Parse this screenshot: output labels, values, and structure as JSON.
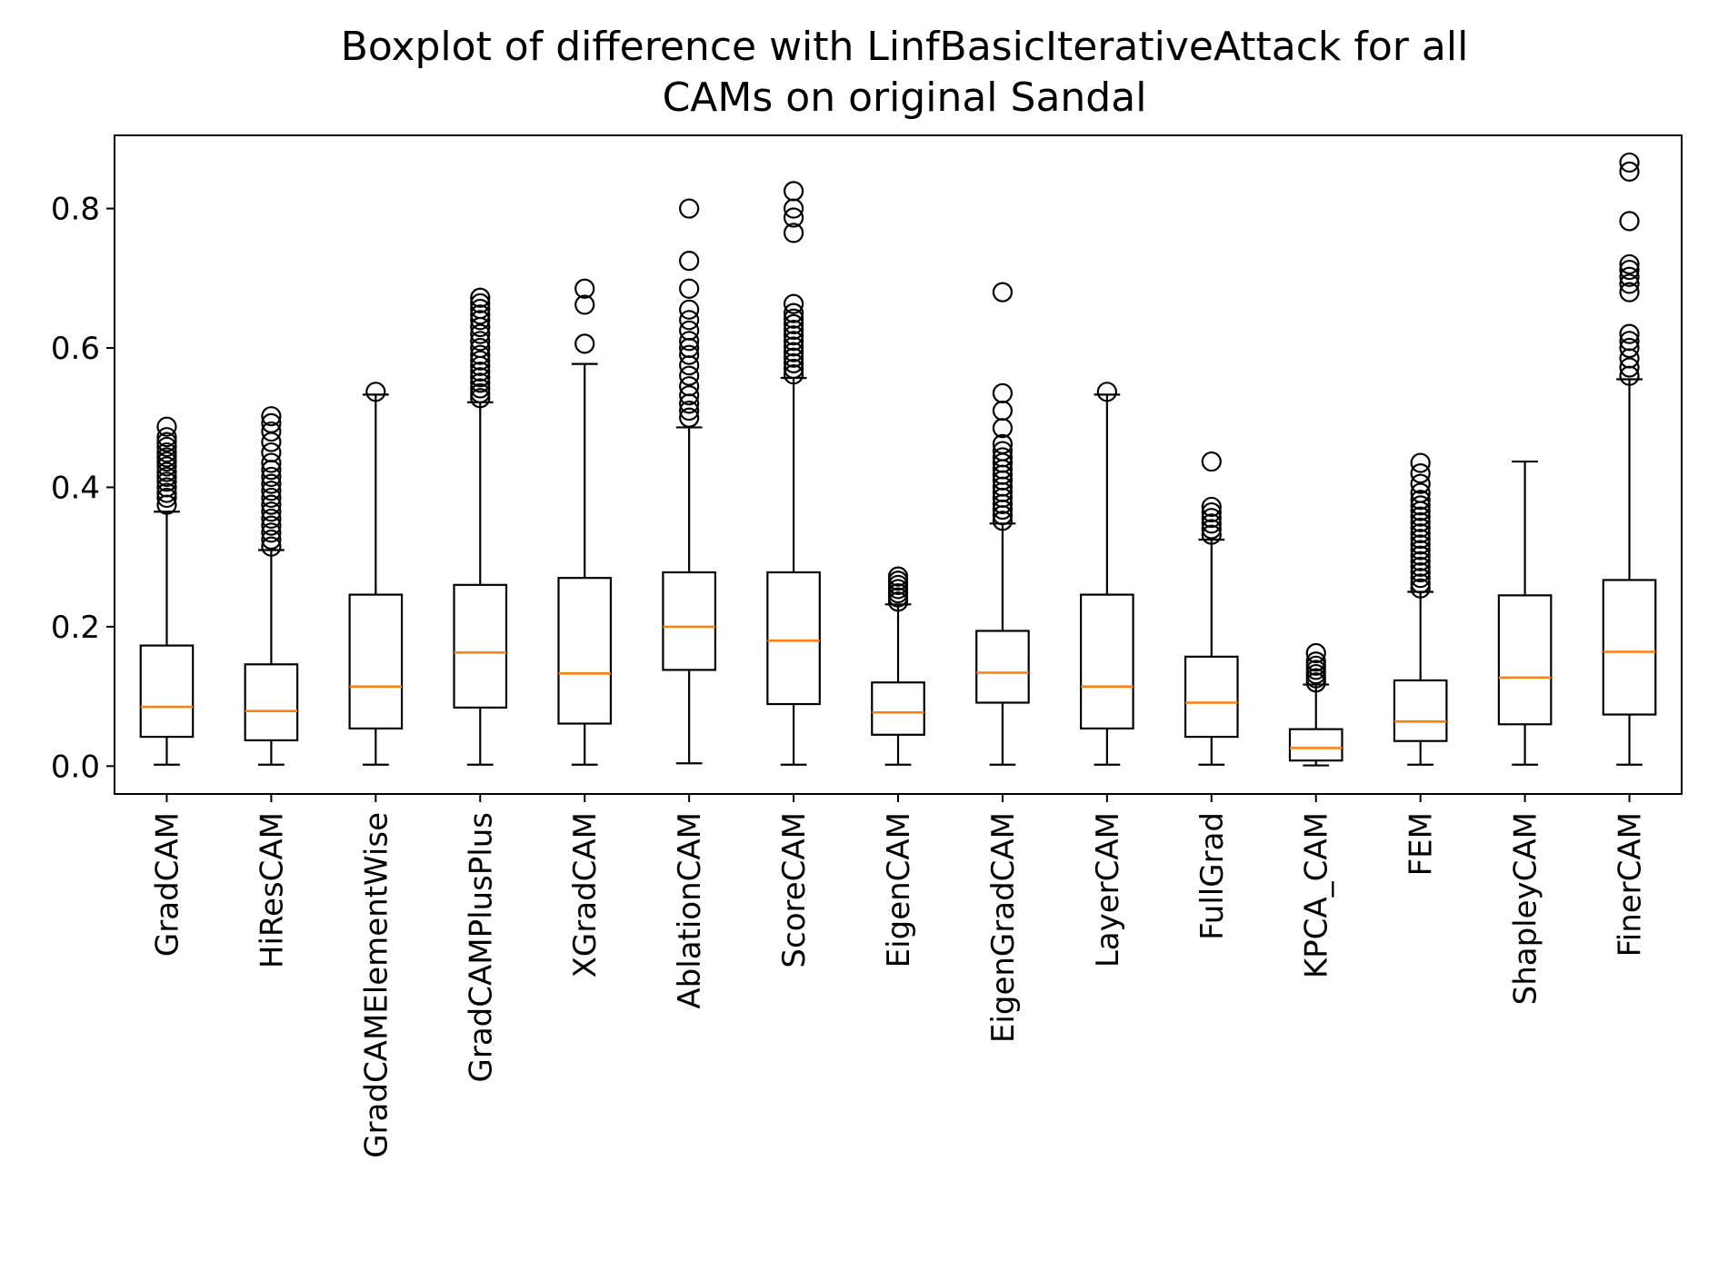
{
  "chart_data": {
    "type": "boxplot",
    "title_lines": [
      "Boxplot of difference with LinfBasicIterativeAttack for all",
      "CAMs on original Sandal"
    ],
    "xlabel": "",
    "ylabel": "",
    "ylim": [
      -0.04,
      0.905
    ],
    "yticks": [
      0.0,
      0.2,
      0.4,
      0.6,
      0.8
    ],
    "ytick_labels": [
      "0.0",
      "0.2",
      "0.4",
      "0.6",
      "0.8"
    ],
    "grid": false,
    "colors": {
      "box": "#000000",
      "median": "#ff7f0e",
      "outlier": "#000000"
    },
    "series": [
      {
        "name": "GradCAM",
        "whislo": 0.002,
        "q1": 0.042,
        "med": 0.085,
        "q3": 0.173,
        "whishi": 0.365,
        "fliers": [
          0.375,
          0.385,
          0.392,
          0.4,
          0.408,
          0.415,
          0.422,
          0.43,
          0.437,
          0.443,
          0.45,
          0.458,
          0.465,
          0.472,
          0.487
        ]
      },
      {
        "name": "HiResCAM",
        "whislo": 0.002,
        "q1": 0.037,
        "med": 0.079,
        "q3": 0.146,
        "whishi": 0.31,
        "fliers": [
          0.315,
          0.325,
          0.335,
          0.345,
          0.355,
          0.365,
          0.375,
          0.385,
          0.395,
          0.405,
          0.415,
          0.425,
          0.435,
          0.45,
          0.465,
          0.48,
          0.492,
          0.502
        ]
      },
      {
        "name": "GradCAMElementWise",
        "whislo": 0.002,
        "q1": 0.054,
        "med": 0.114,
        "q3": 0.246,
        "whishi": 0.533,
        "fliers": [
          0.537
        ]
      },
      {
        "name": "GradCAMPlusPlus",
        "whislo": 0.002,
        "q1": 0.084,
        "med": 0.163,
        "q3": 0.26,
        "whishi": 0.522,
        "fliers": [
          0.528,
          0.535,
          0.542,
          0.55,
          0.558,
          0.566,
          0.574,
          0.582,
          0.59,
          0.6,
          0.61,
          0.62,
          0.63,
          0.64,
          0.648,
          0.656,
          0.664,
          0.672
        ]
      },
      {
        "name": "XGradCAM",
        "whislo": 0.002,
        "q1": 0.061,
        "med": 0.133,
        "q3": 0.27,
        "whishi": 0.577,
        "fliers": [
          0.606,
          0.662,
          0.685
        ]
      },
      {
        "name": "AblationCAM",
        "whislo": 0.004,
        "q1": 0.138,
        "med": 0.2,
        "q3": 0.278,
        "whishi": 0.486,
        "fliers": [
          0.5,
          0.51,
          0.52,
          0.532,
          0.545,
          0.56,
          0.575,
          0.59,
          0.6,
          0.61,
          0.625,
          0.64,
          0.655,
          0.685,
          0.725,
          0.8
        ]
      },
      {
        "name": "ScoreCAM",
        "whislo": 0.002,
        "q1": 0.089,
        "med": 0.18,
        "q3": 0.278,
        "whishi": 0.557,
        "fliers": [
          0.562,
          0.57,
          0.578,
          0.586,
          0.594,
          0.602,
          0.61,
          0.618,
          0.626,
          0.634,
          0.642,
          0.65,
          0.663,
          0.765,
          0.787,
          0.8,
          0.825
        ]
      },
      {
        "name": "EigenCAM",
        "whislo": 0.002,
        "q1": 0.045,
        "med": 0.077,
        "q3": 0.12,
        "whishi": 0.232,
        "fliers": [
          0.236,
          0.242,
          0.248,
          0.254,
          0.26,
          0.266,
          0.272
        ]
      },
      {
        "name": "EigenGradCAM",
        "whislo": 0.002,
        "q1": 0.091,
        "med": 0.134,
        "q3": 0.194,
        "whishi": 0.348,
        "fliers": [
          0.352,
          0.36,
          0.368,
          0.376,
          0.385,
          0.393,
          0.401,
          0.41,
          0.418,
          0.426,
          0.435,
          0.443,
          0.452,
          0.462,
          0.485,
          0.51,
          0.535,
          0.68
        ]
      },
      {
        "name": "LayerCAM",
        "whislo": 0.002,
        "q1": 0.054,
        "med": 0.114,
        "q3": 0.246,
        "whishi": 0.533,
        "fliers": [
          0.537
        ]
      },
      {
        "name": "FullGrad",
        "whislo": 0.002,
        "q1": 0.042,
        "med": 0.091,
        "q3": 0.157,
        "whishi": 0.325,
        "fliers": [
          0.332,
          0.34,
          0.348,
          0.356,
          0.364,
          0.372,
          0.437
        ]
      },
      {
        "name": "KPCA_CAM",
        "whislo": 0.001,
        "q1": 0.008,
        "med": 0.026,
        "q3": 0.053,
        "whishi": 0.117,
        "fliers": [
          0.12,
          0.126,
          0.132,
          0.138,
          0.144,
          0.15,
          0.162
        ]
      },
      {
        "name": "FEM",
        "whislo": 0.002,
        "q1": 0.036,
        "med": 0.064,
        "q3": 0.123,
        "whishi": 0.25,
        "fliers": [
          0.255,
          0.262,
          0.27,
          0.278,
          0.286,
          0.294,
          0.302,
          0.31,
          0.318,
          0.326,
          0.334,
          0.342,
          0.35,
          0.358,
          0.366,
          0.374,
          0.382,
          0.392,
          0.405,
          0.42,
          0.435
        ]
      },
      {
        "name": "ShapleyCAM",
        "whislo": 0.002,
        "q1": 0.06,
        "med": 0.127,
        "q3": 0.245,
        "whishi": 0.437,
        "fliers": []
      },
      {
        "name": "FinerCAM",
        "whislo": 0.002,
        "q1": 0.074,
        "med": 0.164,
        "q3": 0.267,
        "whishi": 0.555,
        "fliers": [
          0.56,
          0.572,
          0.585,
          0.6,
          0.61,
          0.62,
          0.68,
          0.692,
          0.702,
          0.712,
          0.72,
          0.782,
          0.853,
          0.866
        ]
      }
    ]
  }
}
